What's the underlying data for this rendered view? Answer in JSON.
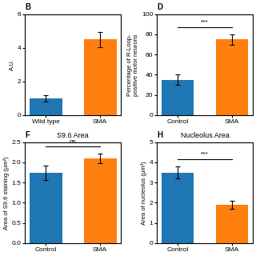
{
  "chart_data": [
    {
      "type": "bar",
      "panel_label": "B",
      "categories": [
        "Wild type",
        "SMA"
      ],
      "values": [
        1.0,
        4.5
      ],
      "errors": [
        0.2,
        0.45
      ],
      "ylabel": "A.U.",
      "ylim": [
        0,
        6
      ],
      "yticks": [
        0,
        2,
        4,
        6
      ]
    },
    {
      "type": "bar",
      "panel_label": "D",
      "categories": [
        "Control",
        "SMA"
      ],
      "values": [
        35,
        75
      ],
      "errors": [
        5,
        5
      ],
      "ylabel": "Percentage of R-Loop-\npositive motor neurons",
      "ylim": [
        0,
        100
      ],
      "yticks": [
        0,
        20,
        40,
        60,
        80,
        100
      ],
      "significance": "***"
    },
    {
      "type": "bar",
      "panel_label": "F",
      "title": "S9.6 Area",
      "categories": [
        "Control",
        "SMA"
      ],
      "values": [
        1.75,
        2.1
      ],
      "errors": [
        0.18,
        0.12
      ],
      "ylabel": "Area of S9.6 staining (µm²)",
      "ylim": [
        0.0,
        2.5
      ],
      "yticks": [
        0.0,
        0.5,
        1.0,
        1.5,
        2.0,
        2.5
      ],
      "significance": "ns"
    },
    {
      "type": "bar",
      "panel_label": "H",
      "title": "Nucleolus Area",
      "categories": [
        "Control",
        "SMA"
      ],
      "values": [
        3.5,
        1.9
      ],
      "errors": [
        0.3,
        0.2
      ],
      "ylabel": "Area of nucleolus (µm²)",
      "ylim": [
        0,
        5
      ],
      "yticks": [
        0,
        1,
        2,
        3,
        4,
        5
      ],
      "significance": "***"
    }
  ]
}
